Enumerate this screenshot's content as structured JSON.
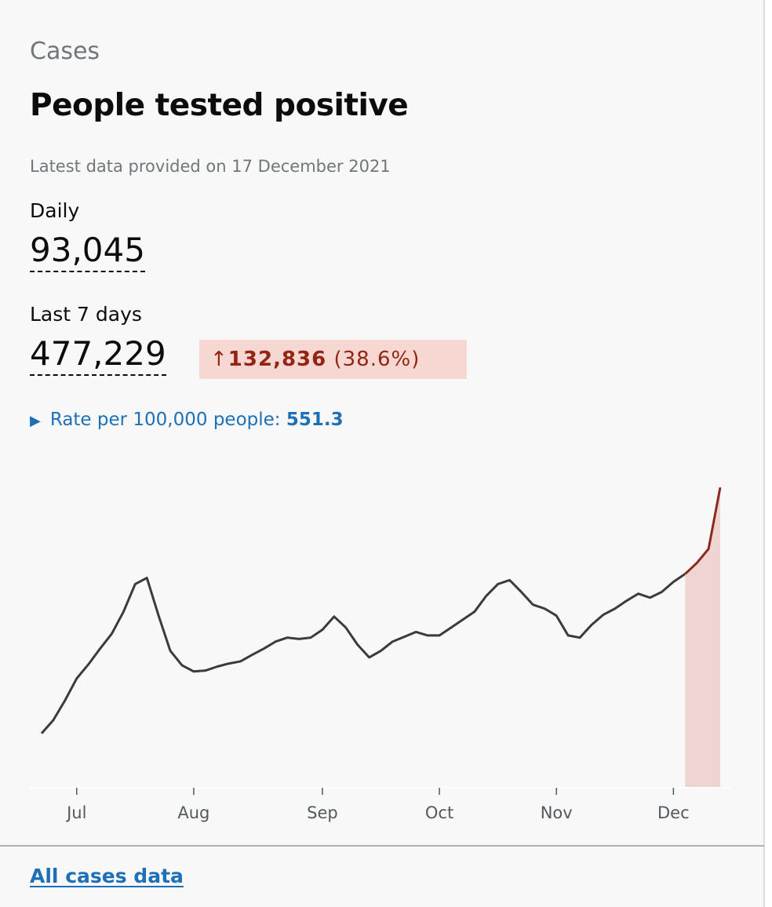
{
  "caption": "Cases",
  "title": "People tested positive",
  "updated": "Latest data provided on 17 December 2021",
  "daily": {
    "label": "Daily",
    "value": "93,045"
  },
  "weekly": {
    "label": "Last 7 days",
    "value": "477,229",
    "change": "132,836",
    "change_percent": "(38.6%)"
  },
  "rate": {
    "label": "Rate per 100,000 people:",
    "value": "551.3"
  },
  "chart_data": {
    "type": "line",
    "categories": [
      null,
      null,
      null,
      "Jul",
      null,
      null,
      null,
      null,
      null,
      null,
      null,
      null,
      null,
      "Aug",
      null,
      null,
      null,
      null,
      null,
      null,
      null,
      null,
      null,
      null,
      "Sep",
      null,
      null,
      null,
      null,
      null,
      null,
      null,
      null,
      null,
      "Oct",
      null,
      null,
      null,
      null,
      null,
      null,
      null,
      null,
      null,
      "Nov",
      null,
      null,
      null,
      null,
      null,
      null,
      null,
      null,
      null,
      "Dec",
      null,
      null,
      null,
      null
    ],
    "series": [
      {
        "color": "#3b3b3d",
        "values": [
          12200,
          15200,
          19700,
          24700,
          27900,
          31500,
          34900,
          39900,
          46200,
          47600,
          39000,
          31000,
          27700,
          26300,
          26500,
          27400,
          28100,
          28600,
          30100,
          31500,
          33100,
          34000,
          33700,
          34000,
          35800,
          38800,
          36300,
          32400,
          29500,
          31000,
          33100,
          34200,
          35300,
          34500,
          34500,
          36300,
          38100,
          39900,
          43500,
          46200,
          47100,
          44400,
          41500,
          40600,
          39000,
          34500,
          34000,
          36900,
          39200,
          40600,
          42400,
          44000,
          43100,
          44400,
          46700,
          48500,
          null,
          null,
          null
        ]
      },
      {
        "color": "#8b2a1e",
        "area_color": "#efd5d2",
        "values": [
          null,
          null,
          null,
          null,
          null,
          null,
          null,
          null,
          null,
          null,
          null,
          null,
          null,
          null,
          null,
          null,
          null,
          null,
          null,
          null,
          null,
          null,
          null,
          null,
          null,
          null,
          null,
          null,
          null,
          null,
          null,
          null,
          null,
          null,
          null,
          null,
          null,
          null,
          null,
          null,
          null,
          null,
          null,
          null,
          null,
          null,
          null,
          null,
          null,
          null,
          null,
          null,
          null,
          null,
          null,
          48500,
          51000,
          54200,
          68200
        ]
      }
    ],
    "ylim": [
      0,
      72000
    ]
  },
  "link": "All cases data"
}
